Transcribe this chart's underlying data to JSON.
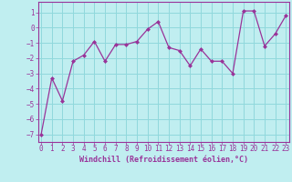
{
  "x": [
    0,
    1,
    2,
    3,
    4,
    5,
    6,
    7,
    8,
    9,
    10,
    11,
    12,
    13,
    14,
    15,
    16,
    17,
    18,
    19,
    20,
    21,
    22,
    23
  ],
  "y": [
    -7,
    -3.3,
    -4.8,
    -2.2,
    -1.8,
    -0.9,
    -2.2,
    -1.1,
    -1.1,
    -0.9,
    -0.1,
    0.4,
    -1.3,
    -1.5,
    -2.5,
    -1.4,
    -2.2,
    -2.2,
    -3.0,
    1.1,
    1.1,
    -1.2,
    -0.4,
    0.8
  ],
  "xlabel": "Windchill (Refroidissement éolien,°C)",
  "bg_color": "#c0eef0",
  "line_color": "#993399",
  "marker_color": "#993399",
  "grid_color": "#90d8dc",
  "spine_color": "#993399",
  "xlim": [
    -0.3,
    23.3
  ],
  "ylim": [
    -7.5,
    1.7
  ],
  "yticks": [
    -7,
    -6,
    -5,
    -4,
    -3,
    -2,
    -1,
    0,
    1
  ],
  "xticks": [
    0,
    1,
    2,
    3,
    4,
    5,
    6,
    7,
    8,
    9,
    10,
    11,
    12,
    13,
    14,
    15,
    16,
    17,
    18,
    19,
    20,
    21,
    22,
    23
  ],
  "tick_fontsize": 5.5,
  "xlabel_fontsize": 6.0
}
